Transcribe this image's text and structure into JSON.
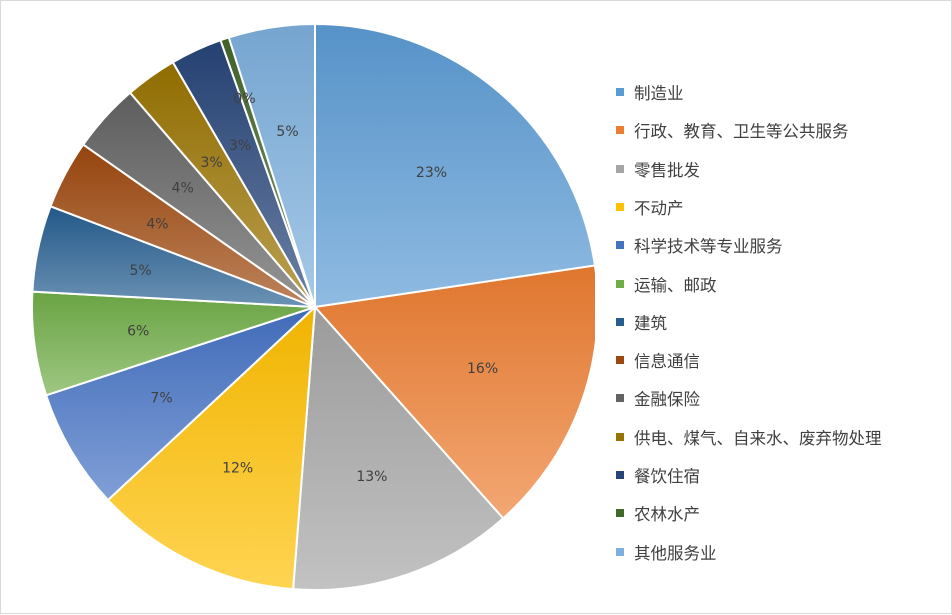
{
  "chart_data": {
    "type": "pie",
    "unit": "%",
    "categories": [
      "制造业",
      "行政、教育、卫生等公共服务",
      "零售批发",
      "不动产",
      "科学技术等专业服务",
      "运输、邮政",
      "建筑",
      "信息通信",
      "金融保险",
      "供电、煤气、自来水、废弃物处理",
      "餐饮住宿",
      "农林水产",
      "其他服务业"
    ],
    "values": [
      23,
      16,
      13,
      12,
      7,
      6,
      5,
      4,
      4,
      3,
      3,
      0.5,
      5
    ],
    "data_labels": [
      "23%",
      "16%",
      "13%",
      "12%",
      "7%",
      "6%",
      "5%",
      "4%",
      "4%",
      "3%",
      "3%",
      "0%",
      "5%"
    ],
    "colors": [
      "#5b9bd5",
      "#ed7d31",
      "#a5a5a5",
      "#ffc000",
      "#4472c4",
      "#70ad47",
      "#255e91",
      "#9e480e",
      "#636363",
      "#997300",
      "#264478",
      "#43682b",
      "#7cafdd"
    ],
    "start_angle_deg": 0,
    "direction": "clockwise",
    "legend_position": "right"
  }
}
